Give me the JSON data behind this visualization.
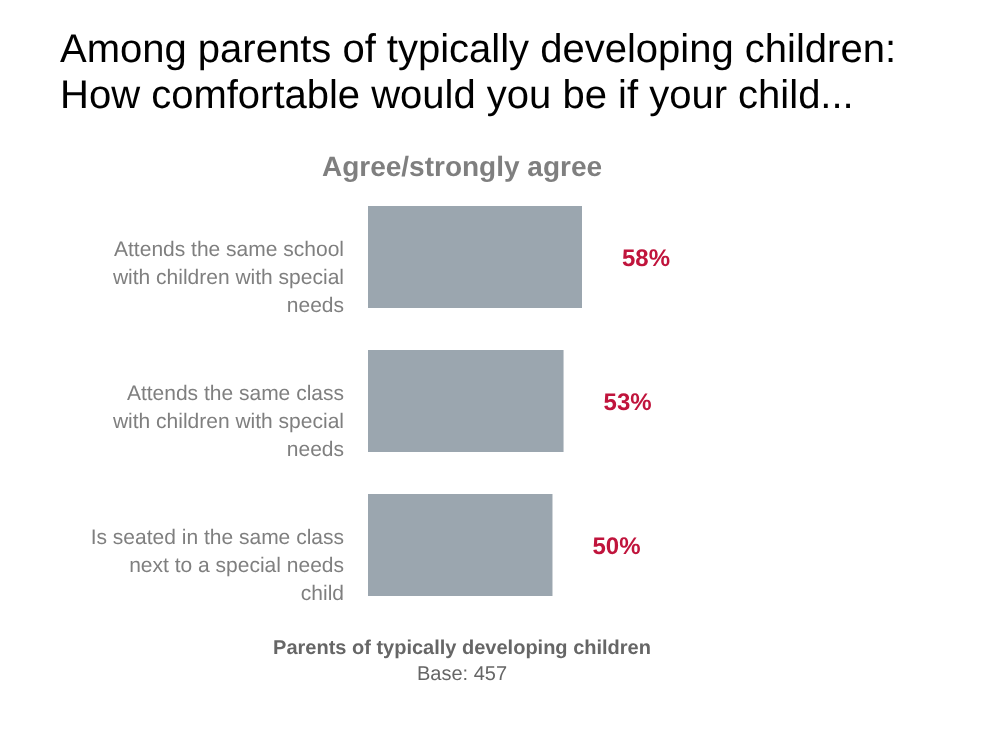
{
  "chart_data": {
    "type": "bar",
    "orientation": "horizontal",
    "title": "Among parents of typically developing children:\nHow comfortable would you be if your child...",
    "subtitle": "Agree/strongly agree",
    "xlabel": "Parents of typically developing children",
    "annotations": [
      "Base: 457"
    ],
    "categories": [
      "Attends the same school with children with special needs",
      "Attends the same class with children with special needs",
      "Is seated in the same class next to a special needs child"
    ],
    "values": [
      58,
      53,
      50
    ],
    "color": "#9ba6af",
    "data_labels": true,
    "value_labels": [
      "58%",
      "53%",
      "50%"
    ]
  }
}
